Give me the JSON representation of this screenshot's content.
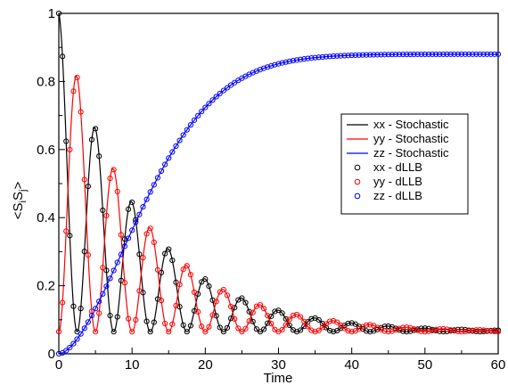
{
  "chart_data": {
    "type": "line",
    "title": "",
    "xlabel": "Time",
    "ylabel": "<S",
    "ylabel_sub1": "i",
    "ylabel_mid": "S",
    "ylabel_sub2": "j",
    "ylabel_end": ">",
    "xlim": [
      0,
      60
    ],
    "ylim": [
      0,
      1
    ],
    "xticks": [
      0,
      10,
      20,
      30,
      40,
      50,
      60
    ],
    "yticks": [
      0,
      0.2,
      0.4,
      0.6,
      0.8,
      1
    ],
    "xtick_labels": [
      "0",
      "10",
      "20",
      "30",
      "40",
      "50",
      "60"
    ],
    "ytick_labels": [
      "0",
      "0.2",
      "0.4",
      "0.6",
      "0.8",
      "1"
    ],
    "grid": false,
    "legend_position": "right",
    "series": [
      {
        "name": "xx - Stochastic",
        "color": "#000000",
        "style": "line",
        "component": "xx"
      },
      {
        "name": "yy - Stochastic",
        "color": "#ff0000",
        "style": "line",
        "component": "yy"
      },
      {
        "name": "zz - Stochastic",
        "color": "#0000ff",
        "style": "line",
        "component": "zz"
      },
      {
        "name": "xx - dLLB",
        "color": "#000000",
        "style": "circle",
        "component": "xx"
      },
      {
        "name": "yy - dLLB",
        "color": "#ff0000",
        "style": "circle",
        "component": "yy"
      },
      {
        "name": "zz - dLLB",
        "color": "#0000ff",
        "style": "circle",
        "component": "zz"
      }
    ],
    "model": {
      "steady_xy": 0.065,
      "steady_zz": 0.88,
      "amplitude_xy": 0.935,
      "decay_rate_xy": 0.09,
      "oscillation_period": 5,
      "relaxation_rate_zz": 0.08,
      "marker_interval": 0.5
    }
  }
}
